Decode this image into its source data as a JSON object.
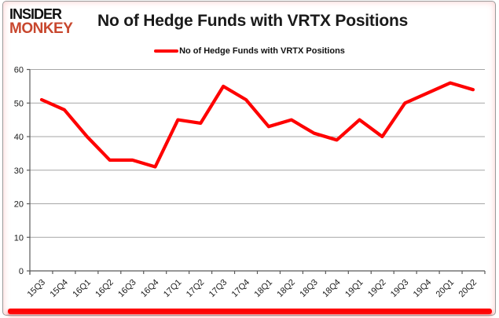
{
  "brand": {
    "line1": "INSIDER",
    "line2": "MONKEY",
    "line1_color": "#111111",
    "line2_color": "#c8472e"
  },
  "header": {
    "title": "No of Hedge Funds with VRTX Positions"
  },
  "legend": {
    "label": "No of Hedge Funds with VRTX Positions",
    "line_color": "#fe0000"
  },
  "chart_data": {
    "type": "line",
    "title": "No of Hedge Funds with VRTX Positions",
    "series_name": "No of Hedge Funds with VRTX Positions",
    "categories": [
      "15Q3",
      "15Q4",
      "16Q1",
      "16Q2",
      "16Q3",
      "16Q4",
      "17Q1",
      "17Q2",
      "17Q3",
      "17Q4",
      "18Q1",
      "18Q2",
      "18Q3",
      "18Q4",
      "19Q1",
      "19Q2",
      "19Q3",
      "19Q4",
      "20Q1",
      "20Q2"
    ],
    "values": [
      51,
      48,
      40,
      33,
      33,
      31,
      45,
      44,
      55,
      51,
      43,
      45,
      41,
      39,
      45,
      40,
      50,
      53,
      56,
      54
    ],
    "xlabel": "",
    "ylabel": "",
    "ylim": [
      0,
      60
    ],
    "yticks": [
      0,
      10,
      20,
      30,
      40,
      50,
      60
    ],
    "grid": true,
    "legend_position": "top-center",
    "line_color": "#fe0000",
    "grid_color": "#a6a6a6",
    "axis_color": "#595959",
    "tick_label_color": "#1a1a1a"
  },
  "footer": {
    "bar_color": "#fe0000"
  }
}
